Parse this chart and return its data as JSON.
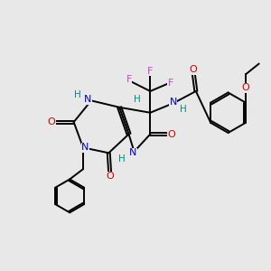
{
  "background_color": "#e8e8e8",
  "figsize": [
    3.0,
    3.0
  ],
  "dpi": 100,
  "colors": {
    "N": "#0000cc",
    "O": "#cc0000",
    "F": "#cc44cc",
    "H": "#008888",
    "C": "#000000",
    "bond": "#000000"
  },
  "font_size": 8.0,
  "bond_lw": 1.4
}
